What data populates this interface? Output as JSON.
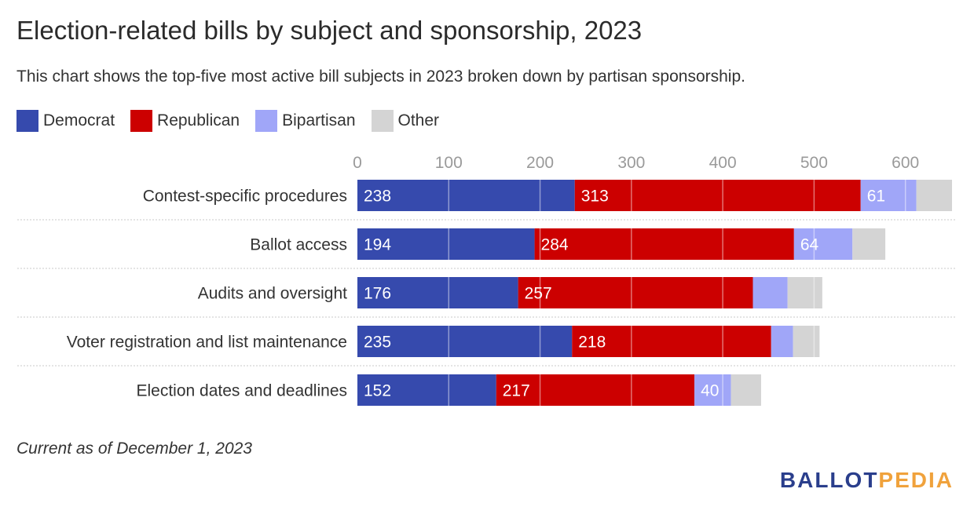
{
  "title": "Election-related bills by subject and sponsorship, 2023",
  "subtitle": "This chart shows the top-five most active bill subjects in 2023 broken down by partisan sponsorship.",
  "footnote": "Current as of December 1, 2023",
  "brand": {
    "part1": "BALLOT",
    "part2": "PEDIA"
  },
  "legend": [
    {
      "label": "Democrat",
      "color": "#364aad"
    },
    {
      "label": "Republican",
      "color": "#cc0000"
    },
    {
      "label": "Bipartisan",
      "color": "#a0a6f8"
    },
    {
      "label": "Other",
      "color": "#d4d4d4"
    }
  ],
  "chart_data": {
    "type": "bar",
    "orientation": "horizontal",
    "stacked": true,
    "categories": [
      "Contest-specific procedures",
      "Ballot access",
      "Audits and oversight",
      "Voter registration and list maintenance",
      "Election dates and deadlines"
    ],
    "series": [
      {
        "name": "Democrat",
        "color": "#364aad",
        "values": [
          238,
          194,
          176,
          235,
          152
        ],
        "labels": [
          "238",
          "194",
          "176",
          "235",
          "152"
        ]
      },
      {
        "name": "Republican",
        "color": "#cc0000",
        "values": [
          313,
          284,
          257,
          218,
          217
        ],
        "labels": [
          "313",
          "284",
          "257",
          "218",
          "217"
        ]
      },
      {
        "name": "Bipartisan",
        "color": "#a0a6f8",
        "values": [
          61,
          64,
          38,
          24,
          40
        ],
        "labels": [
          "61",
          "64",
          "",
          "",
          "40"
        ]
      },
      {
        "name": "Other",
        "color": "#d4d4d4",
        "values": [
          39,
          36,
          38,
          29,
          33
        ],
        "labels": [
          "",
          "",
          "",
          "",
          ""
        ]
      }
    ],
    "xticks": [
      0,
      100,
      200,
      300,
      400,
      500,
      600
    ],
    "xlim": [
      0,
      650
    ],
    "grid": true,
    "legend_position": "top-left"
  }
}
